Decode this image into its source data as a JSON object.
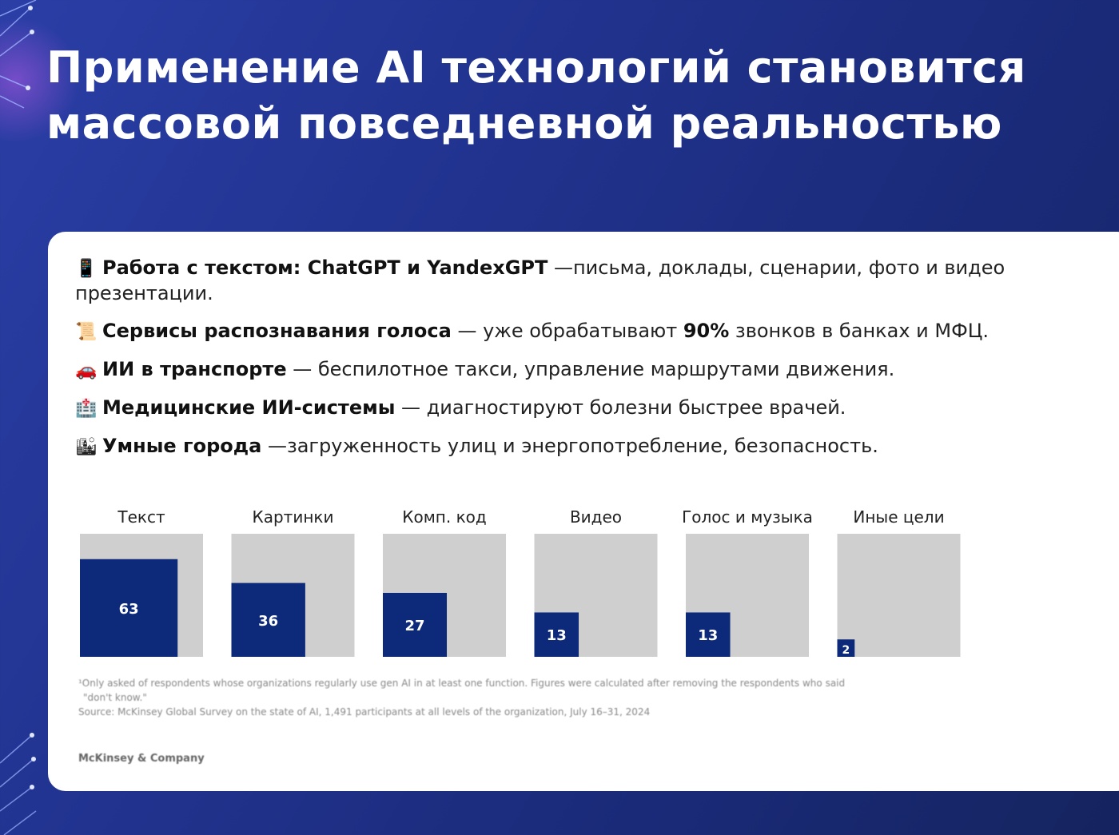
{
  "title": "Применение AI технологий становится массовой повседневной реальностью",
  "bullets": [
    {
      "icon": "mobile-phone",
      "glyph": "📱",
      "bold": "Работа с текстом: ChatGPT и YandexGPT",
      "text": " —письма, доклады, сценарии, фото и видео презентации."
    },
    {
      "icon": "page-scroll",
      "glyph": "📜",
      "bold": "Сервисы распознавания голоса",
      "text_before": " — уже обрабатывают ",
      "strong": "90%",
      "text_after": " звонков в банках и МФЦ."
    },
    {
      "icon": "car",
      "glyph": "🚗",
      "bold": "ИИ в транспорте",
      "text": " — беспилотное такси, управление маршрутами движения."
    },
    {
      "icon": "hospital",
      "glyph": "🏥",
      "bold": "Медицинские ИИ-системы",
      "text": " — диагностируют болезни быстрее врачей."
    },
    {
      "icon": "city",
      "glyph": "🏙",
      "bold": "Умные города",
      "text": " —загруженность улиц и энергопотребление, безопасность."
    }
  ],
  "chart_data": {
    "type": "bar",
    "categories": [
      "Текст",
      "Картинки",
      "Комп. код",
      "Видео",
      "Голос и музыка",
      "Иные цели"
    ],
    "values": [
      63,
      36,
      27,
      13,
      13,
      2
    ],
    "ylim": [
      0,
      100
    ],
    "title": "",
    "xlabel": "",
    "ylabel": ""
  },
  "footnote": {
    "line1": "¹Only asked of respondents whose organizations regularly use gen AI in at least one function. Figures were calculated after removing the respondents who said",
    "line2": "\"don't know.\"",
    "line3": "Source: McKinsey Global Survey on the state of AI, 1,491 participants at all levels of the organization, July 16–31, 2024"
  },
  "brand": "McKinsey & Company",
  "colors": {
    "bar": "#0d2a7a",
    "bar_bg": "#cfcfcf",
    "background": "#21338f"
  }
}
